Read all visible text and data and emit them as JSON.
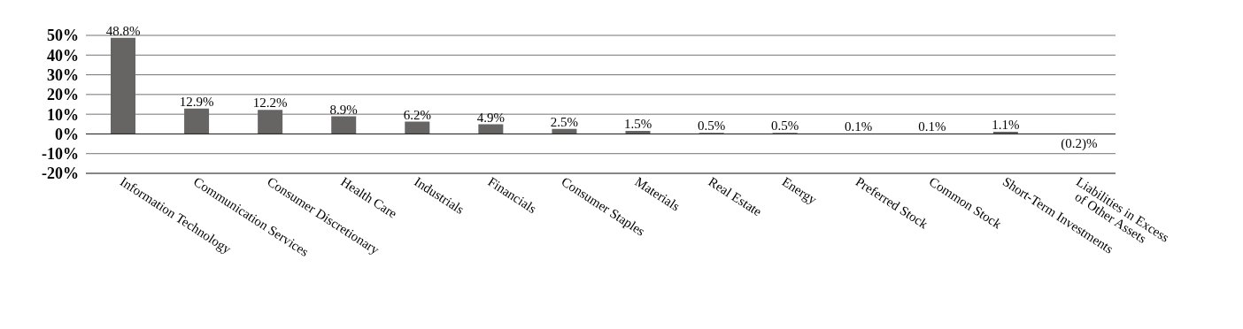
{
  "chart_data": {
    "type": "bar",
    "categories": [
      "Information Technology",
      "Communication Services",
      "Consumer Discretionary",
      "Health Care",
      "Industrials",
      "Financials",
      "Consumer Staples",
      "Materials",
      "Real Estate",
      "Energy",
      "Preferred Stock",
      "Common Stock",
      "Short-Term Investments",
      "Liabilities in Excess of Other Assets"
    ],
    "values": [
      48.8,
      12.9,
      12.2,
      8.9,
      6.2,
      4.9,
      2.5,
      1.5,
      0.5,
      0.5,
      0.1,
      0.1,
      1.1,
      -0.2
    ],
    "value_labels": [
      "48.8%",
      "12.9%",
      "12.2%",
      "8.9%",
      "6.2%",
      "4.9%",
      "2.5%",
      "1.5%",
      "0.5%",
      "0.5%",
      "0.1%",
      "0.1%",
      "1.1%",
      "(0.2)%"
    ],
    "color": "#676464",
    "ylim": [
      -20,
      50
    ],
    "yticks": [
      {
        "value": -20,
        "label": "-20%"
      },
      {
        "value": -10,
        "label": "-10%"
      },
      {
        "value": 0,
        "label": "0%"
      },
      {
        "value": 10,
        "label": "10%"
      },
      {
        "value": 20,
        "label": "20%"
      },
      {
        "value": 30,
        "label": "30%"
      },
      {
        "value": 40,
        "label": "40%"
      },
      {
        "value": 50,
        "label": "50%"
      }
    ],
    "grid": "y"
  }
}
